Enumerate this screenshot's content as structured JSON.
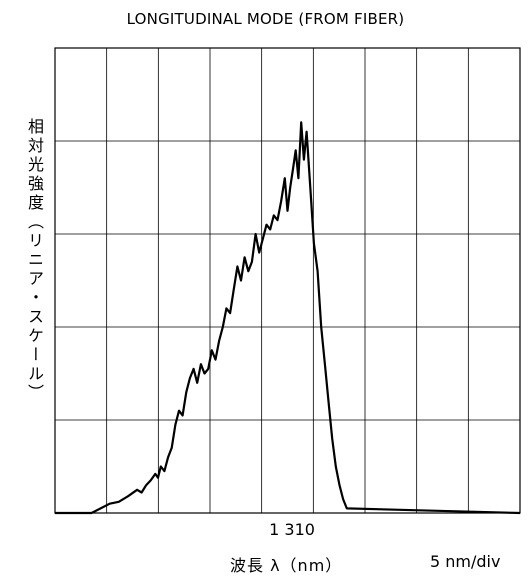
{
  "title": "LONGITUDINAL MODE (FROM FIBER)",
  "ylabel": "相対光強度（リニア・スケール）",
  "xlabel": "波長 λ（nm）",
  "scale_label": "5 nm/div",
  "chart_data": {
    "type": "line",
    "title": "LONGITUDINAL MODE (FROM FIBER)",
    "xlabel": "波長 λ（nm）",
    "ylabel": "相対光強度（リニア・スケール）",
    "x_tick_labels": [
      "1 310"
    ],
    "x_tick_values": [
      1310
    ],
    "xlim": [
      1284,
      1335
    ],
    "ylim": [
      0,
      5
    ],
    "x_divisions": 9,
    "y_divisions": 5,
    "x_unit_per_div": "5 nm/div",
    "grid": true,
    "series": [
      {
        "color": "#000000",
        "x": [
          1284,
          1288,
          1289,
          1290,
          1291,
          1292,
          1293,
          1293.5,
          1294,
          1294.5,
          1295,
          1295.3,
          1295.6,
          1296,
          1296.4,
          1296.8,
          1297.2,
          1297.6,
          1298,
          1298.4,
          1298.8,
          1299.2,
          1299.6,
          1300,
          1300.4,
          1300.8,
          1301.2,
          1301.6,
          1302,
          1302.4,
          1302.8,
          1303.2,
          1303.6,
          1304,
          1304.4,
          1304.8,
          1305.2,
          1305.6,
          1306,
          1306.4,
          1306.8,
          1307.2,
          1307.6,
          1308,
          1308.4,
          1308.8,
          1309.2,
          1309.5,
          1309.8,
          1310.1,
          1310.4,
          1310.7,
          1311,
          1311.3,
          1311.6,
          1312,
          1312.4,
          1312.8,
          1313.2,
          1313.6,
          1314,
          1314.4,
          1314.8,
          1315.2,
          1315.6,
          1316,
          1335
        ],
        "y": [
          0,
          0,
          0.05,
          0.1,
          0.12,
          0.18,
          0.25,
          0.22,
          0.3,
          0.35,
          0.42,
          0.38,
          0.5,
          0.45,
          0.6,
          0.7,
          0.95,
          1.1,
          1.05,
          1.3,
          1.45,
          1.55,
          1.4,
          1.6,
          1.5,
          1.55,
          1.75,
          1.65,
          1.85,
          2.0,
          2.2,
          2.15,
          2.4,
          2.65,
          2.5,
          2.75,
          2.6,
          2.7,
          3.0,
          2.8,
          2.95,
          3.1,
          3.05,
          3.2,
          3.15,
          3.35,
          3.6,
          3.25,
          3.5,
          3.7,
          3.9,
          3.6,
          4.2,
          3.8,
          4.1,
          3.5,
          2.9,
          2.6,
          2.0,
          1.6,
          1.2,
          0.8,
          0.5,
          0.3,
          0.15,
          0.05,
          0
        ]
      }
    ]
  }
}
